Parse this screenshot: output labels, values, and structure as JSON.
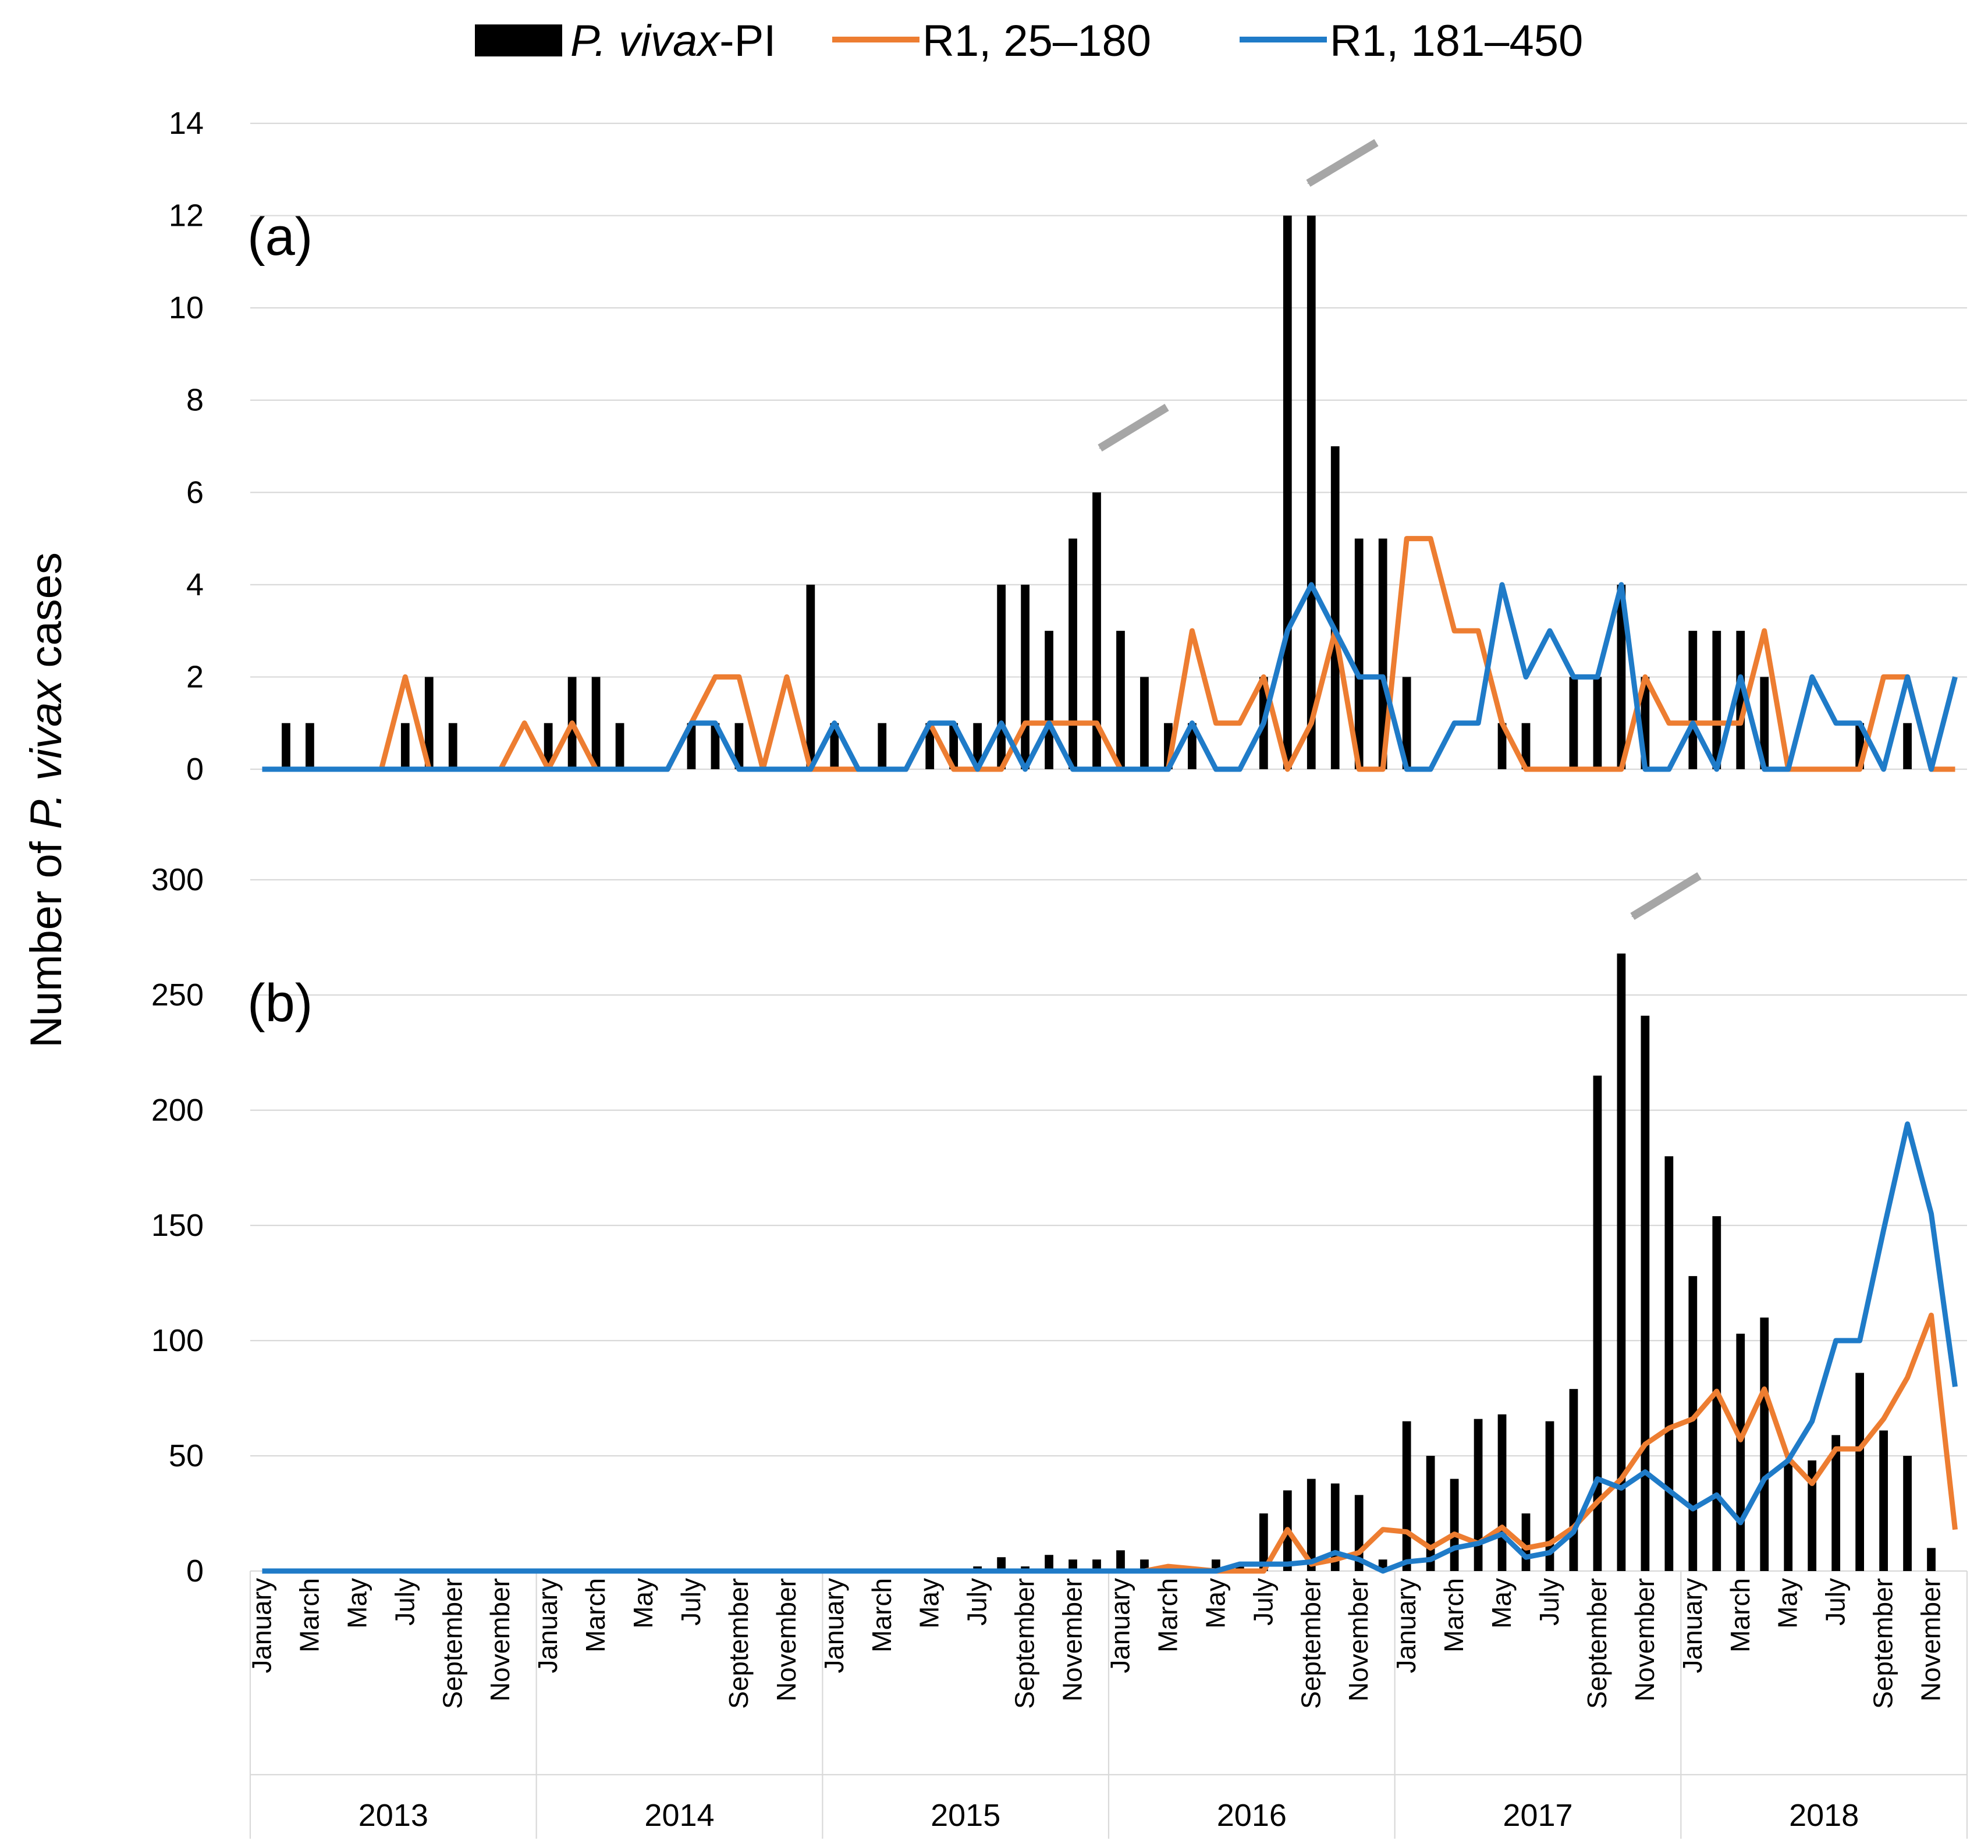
{
  "colors": {
    "bars": "#000000",
    "r1_25_180": "#ED7D31",
    "r1_181_450": "#1F7BC8",
    "grid": "#d9d9d9",
    "arrow": "#a6a6a6"
  },
  "legend": {
    "bar_label_italic": "P. vivax",
    "bar_label_rest": "-PI",
    "series1_label": "R1, 25–180",
    "series2_label": "R1, 181–450"
  },
  "ylabel": {
    "before": "Number of ",
    "italic": "P. vivax",
    "after": " cases"
  },
  "chart_data": [
    {
      "panel": "(a)",
      "type": "bar+line",
      "ylim": [
        0,
        14
      ],
      "yticks": [
        0,
        2,
        4,
        6,
        8,
        10,
        12,
        14
      ],
      "grid": true,
      "years": [
        "2013",
        "2014",
        "2015",
        "2016",
        "2017",
        "2018"
      ],
      "month_labels_shown": [
        "January",
        "March",
        "May",
        "July",
        "September",
        "November"
      ],
      "bars_name": "P. vivax-PI",
      "bars": [
        0,
        1,
        1,
        0,
        0,
        0,
        1,
        2,
        1,
        0,
        0,
        0,
        1,
        2,
        2,
        1,
        0,
        0,
        1,
        1,
        1,
        0,
        0,
        4,
        1,
        0,
        1,
        0,
        1,
        1,
        1,
        4,
        4,
        3,
        5,
        6,
        3,
        2,
        1,
        1,
        0,
        0,
        2,
        12,
        12,
        7,
        5,
        5,
        2,
        0,
        0,
        0,
        1,
        1,
        0,
        2,
        2,
        4,
        2,
        0,
        3,
        3,
        3,
        2,
        0,
        0,
        0,
        1,
        0,
        1,
        0,
        0
      ],
      "series": [
        {
          "name": "R1, 25–180",
          "values": [
            0,
            0,
            0,
            0,
            0,
            0,
            2,
            0,
            0,
            0,
            0,
            1,
            0,
            1,
            0,
            0,
            0,
            0,
            1,
            2,
            2,
            0,
            2,
            0,
            0,
            0,
            0,
            0,
            1,
            0,
            0,
            0,
            1,
            1,
            1,
            1,
            0,
            0,
            0,
            3,
            1,
            1,
            2,
            0,
            1,
            3,
            0,
            0,
            5,
            5,
            3,
            3,
            1,
            0,
            0,
            0,
            0,
            0,
            2,
            1,
            1,
            1,
            1,
            3,
            0,
            0,
            0,
            0,
            2,
            2,
            0,
            0
          ]
        },
        {
          "name": "R1, 181–450",
          "values": [
            0,
            0,
            0,
            0,
            0,
            0,
            0,
            0,
            0,
            0,
            0,
            0,
            0,
            0,
            0,
            0,
            0,
            0,
            1,
            1,
            0,
            0,
            0,
            0,
            1,
            0,
            0,
            0,
            1,
            1,
            0,
            1,
            0,
            1,
            0,
            0,
            0,
            0,
            0,
            1,
            0,
            0,
            1,
            3,
            4,
            3,
            2,
            2,
            0,
            0,
            1,
            1,
            4,
            2,
            3,
            2,
            2,
            4,
            0,
            0,
            1,
            0,
            2,
            0,
            0,
            2,
            1,
            1,
            0,
            2,
            0,
            2
          ]
        }
      ]
    },
    {
      "panel": "(b)",
      "type": "bar+line",
      "ylim": [
        0,
        300
      ],
      "yticks": [
        0,
        50,
        100,
        150,
        200,
        250,
        300
      ],
      "grid": true,
      "years": [
        "2013",
        "2014",
        "2015",
        "2016",
        "2017",
        "2018"
      ],
      "month_labels_shown": [
        "January",
        "March",
        "May",
        "July",
        "September",
        "November"
      ],
      "bars_name": "P. vivax-PI",
      "bars": [
        0,
        0,
        0,
        0,
        0,
        0,
        0,
        0,
        0,
        0,
        0,
        0,
        0,
        0,
        0,
        0,
        0,
        0,
        0,
        0,
        0,
        0,
        0,
        1,
        0,
        0,
        0,
        0,
        0,
        1,
        2,
        6,
        2,
        7,
        5,
        5,
        9,
        5,
        1,
        1,
        5,
        3,
        25,
        35,
        40,
        38,
        33,
        5,
        65,
        50,
        40,
        66,
        68,
        25,
        65,
        79,
        215,
        268,
        241,
        180,
        128,
        154,
        103,
        110,
        47,
        48,
        59,
        86,
        61,
        50,
        10,
        0
      ],
      "series": [
        {
          "name": "R1, 25–180",
          "values": [
            0,
            0,
            0,
            0,
            0,
            0,
            0,
            0,
            0,
            0,
            0,
            0,
            0,
            0,
            0,
            0,
            0,
            0,
            0,
            0,
            0,
            0,
            0,
            0,
            0,
            0,
            0,
            0,
            0,
            0,
            0,
            0,
            0,
            0,
            0,
            0,
            0,
            0,
            2,
            1,
            0,
            0,
            0,
            18,
            3,
            5,
            8,
            18,
            17,
            10,
            16,
            12,
            19,
            10,
            12,
            19,
            30,
            40,
            55,
            62,
            66,
            78,
            57,
            79,
            49,
            38,
            53,
            53,
            66,
            84,
            111,
            18
          ]
        },
        {
          "name": "R1, 181–450",
          "values": [
            0,
            0,
            0,
            0,
            0,
            0,
            0,
            0,
            0,
            0,
            0,
            0,
            0,
            0,
            0,
            0,
            0,
            0,
            0,
            0,
            0,
            0,
            0,
            0,
            0,
            0,
            0,
            0,
            0,
            0,
            0,
            0,
            0,
            0,
            0,
            0,
            0,
            0,
            0,
            0,
            0,
            3,
            3,
            3,
            4,
            8,
            5,
            0,
            4,
            5,
            10,
            12,
            16,
            6,
            8,
            17,
            40,
            36,
            43,
            35,
            27,
            33,
            21,
            40,
            48,
            65,
            100,
            100,
            148,
            194,
            155,
            80
          ]
        }
      ]
    }
  ]
}
